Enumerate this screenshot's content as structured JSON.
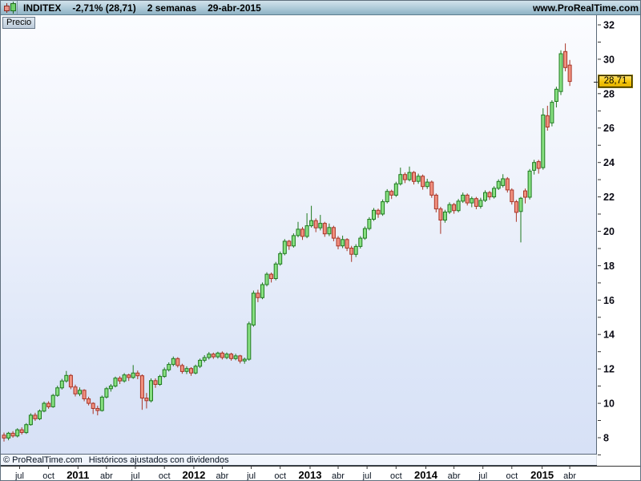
{
  "title_bar": {
    "symbol": "INDITEX",
    "change": "-2,71% (28,71)",
    "timeframe": "2 semanas",
    "date": "29-abr-2015",
    "website": "www.ProRealTime.com",
    "symbol_icon": "candlestick-pair-icon"
  },
  "price_tab": {
    "label": "Precio"
  },
  "footer": {
    "copyright": "© ProRealTime.com",
    "note": "Históricos ajustados con dividendos"
  },
  "last_price_label": "28,71",
  "colors": {
    "up_border": "#1f7a1f",
    "up_fill": "#87e081",
    "down_border": "#a93426",
    "down_fill": "#f19180",
    "badge_bg": "#f2c308",
    "titlebar_bg": "#aac8d6",
    "plot_bg_top": "#fbfcff",
    "plot_bg_bottom": "#d6e0f6",
    "axis_text": "#0a0a14"
  },
  "chart_data": {
    "type": "candlestick",
    "title": "INDITEX",
    "period_per_candle": "2 semanas",
    "last_date": "29-abr-2015",
    "last_price": 28.71,
    "y_axis": {
      "min": 6.4,
      "max": 32.6,
      "minor_step": 1,
      "label_step": 2,
      "labels": [
        "32",
        "30",
        "28",
        "26",
        "24",
        "22",
        "20",
        "18",
        "16",
        "14",
        "12",
        "10",
        "8"
      ]
    },
    "x_axis": {
      "ticks": [
        {
          "i": 3.5,
          "label": "jul",
          "bold": false
        },
        {
          "i": 10,
          "label": "oct",
          "bold": false
        },
        {
          "i": 16.6,
          "label": "2011",
          "bold": true
        },
        {
          "i": 23,
          "label": "abr",
          "bold": false
        },
        {
          "i": 29.5,
          "label": "jul",
          "bold": false
        },
        {
          "i": 36,
          "label": "oct",
          "bold": false
        },
        {
          "i": 42.6,
          "label": "2012",
          "bold": true
        },
        {
          "i": 49,
          "label": "abr",
          "bold": false
        },
        {
          "i": 55.5,
          "label": "jul",
          "bold": false
        },
        {
          "i": 62,
          "label": "oct",
          "bold": false
        },
        {
          "i": 68.7,
          "label": "2013",
          "bold": true
        },
        {
          "i": 75,
          "label": "abr",
          "bold": false
        },
        {
          "i": 81.5,
          "label": "jul",
          "bold": false
        },
        {
          "i": 88,
          "label": "oct",
          "bold": false
        },
        {
          "i": 94.7,
          "label": "2014",
          "bold": true
        },
        {
          "i": 101,
          "label": "abr",
          "bold": false
        },
        {
          "i": 107.5,
          "label": "jul",
          "bold": false
        },
        {
          "i": 114,
          "label": "oct",
          "bold": false
        },
        {
          "i": 120.8,
          "label": "2015",
          "bold": true
        },
        {
          "i": 127,
          "label": "abr",
          "bold": false
        }
      ]
    },
    "ohlc": [
      [
        8.15,
        8.3,
        7.78,
        7.98
      ],
      [
        7.98,
        8.34,
        7.85,
        8.26
      ],
      [
        8.26,
        8.38,
        8.0,
        8.1
      ],
      [
        8.1,
        8.55,
        8.02,
        8.46
      ],
      [
        8.46,
        8.6,
        8.18,
        8.3
      ],
      [
        8.3,
        8.85,
        8.22,
        8.76
      ],
      [
        8.76,
        9.42,
        8.7,
        9.31
      ],
      [
        9.31,
        9.45,
        8.98,
        9.1
      ],
      [
        9.1,
        9.64,
        9.02,
        9.55
      ],
      [
        9.55,
        10.1,
        9.48,
        10.0
      ],
      [
        10.0,
        10.12,
        9.68,
        9.8
      ],
      [
        9.8,
        10.55,
        9.74,
        10.46
      ],
      [
        10.46,
        11.02,
        10.38,
        10.9
      ],
      [
        10.9,
        11.42,
        10.8,
        11.3
      ],
      [
        11.3,
        11.88,
        11.2,
        11.62
      ],
      [
        11.62,
        11.7,
        10.82,
        10.95
      ],
      [
        10.95,
        11.08,
        10.4,
        10.55
      ],
      [
        10.55,
        10.92,
        10.42,
        10.76
      ],
      [
        10.76,
        10.82,
        10.12,
        10.26
      ],
      [
        10.26,
        10.38,
        9.88,
        10.0
      ],
      [
        10.0,
        10.06,
        9.38,
        9.7
      ],
      [
        9.7,
        9.86,
        9.3,
        9.58
      ],
      [
        9.58,
        10.45,
        9.52,
        10.36
      ],
      [
        10.36,
        10.95,
        10.28,
        10.85
      ],
      [
        10.85,
        11.12,
        10.68,
        11.0
      ],
      [
        11.0,
        11.55,
        10.92,
        11.46
      ],
      [
        11.46,
        11.58,
        11.12,
        11.3
      ],
      [
        11.3,
        11.75,
        11.2,
        11.65
      ],
      [
        11.65,
        11.72,
        11.3,
        11.5
      ],
      [
        11.5,
        12.22,
        11.42,
        11.76
      ],
      [
        11.76,
        11.9,
        11.4,
        11.6
      ],
      [
        11.6,
        11.68,
        9.62,
        10.3
      ],
      [
        10.3,
        10.6,
        9.7,
        10.15
      ],
      [
        10.15,
        11.45,
        10.05,
        11.32
      ],
      [
        11.32,
        11.45,
        10.9,
        11.1
      ],
      [
        11.1,
        11.66,
        11.02,
        11.56
      ],
      [
        11.56,
        12.08,
        11.48,
        11.95
      ],
      [
        11.95,
        12.38,
        11.85,
        12.26
      ],
      [
        12.26,
        12.72,
        12.15,
        12.6
      ],
      [
        12.6,
        12.68,
        12.08,
        12.2
      ],
      [
        12.2,
        12.3,
        11.72,
        11.85
      ],
      [
        11.85,
        12.15,
        11.7,
        12.02
      ],
      [
        12.02,
        12.1,
        11.6,
        11.76
      ],
      [
        11.76,
        12.25,
        11.68,
        12.15
      ],
      [
        12.15,
        12.6,
        12.05,
        12.5
      ],
      [
        12.5,
        12.8,
        12.38,
        12.66
      ],
      [
        12.66,
        12.98,
        12.55,
        12.86
      ],
      [
        12.86,
        12.95,
        12.58,
        12.7
      ],
      [
        12.7,
        13.0,
        12.6,
        12.92
      ],
      [
        12.92,
        13.02,
        12.55,
        12.66
      ],
      [
        12.66,
        12.96,
        12.56,
        12.86
      ],
      [
        12.86,
        12.94,
        12.48,
        12.6
      ],
      [
        12.6,
        12.88,
        12.5,
        12.76
      ],
      [
        12.76,
        12.82,
        12.32,
        12.46
      ],
      [
        12.46,
        12.66,
        12.3,
        12.56
      ],
      [
        12.56,
        14.75,
        12.48,
        14.62
      ],
      [
        14.55,
        16.55,
        14.45,
        16.4
      ],
      [
        16.4,
        16.6,
        15.88,
        16.14
      ],
      [
        16.14,
        17.02,
        16.05,
        16.9
      ],
      [
        16.9,
        17.62,
        16.8,
        17.5
      ],
      [
        17.5,
        17.6,
        17.02,
        17.25
      ],
      [
        17.25,
        18.22,
        17.15,
        18.1
      ],
      [
        18.1,
        18.82,
        18.0,
        18.7
      ],
      [
        18.7,
        19.55,
        18.6,
        19.42
      ],
      [
        19.42,
        19.5,
        18.92,
        19.15
      ],
      [
        19.15,
        19.88,
        19.05,
        19.75
      ],
      [
        19.75,
        20.55,
        19.65,
        20.12
      ],
      [
        20.12,
        20.25,
        19.5,
        19.7
      ],
      [
        19.7,
        21.05,
        19.6,
        20.32
      ],
      [
        20.32,
        21.48,
        20.22,
        20.62
      ],
      [
        20.62,
        20.75,
        19.95,
        20.2
      ],
      [
        20.2,
        20.95,
        20.05,
        20.46
      ],
      [
        20.46,
        20.55,
        19.68,
        19.85
      ],
      [
        19.85,
        20.45,
        19.72,
        20.22
      ],
      [
        20.22,
        20.32,
        19.42,
        19.6
      ],
      [
        19.6,
        19.72,
        18.95,
        19.15
      ],
      [
        19.15,
        19.75,
        19.02,
        19.52
      ],
      [
        19.52,
        19.6,
        18.85,
        19.02
      ],
      [
        19.02,
        19.15,
        18.22,
        18.66
      ],
      [
        18.66,
        19.25,
        18.5,
        19.12
      ],
      [
        19.12,
        19.72,
        19.0,
        19.6
      ],
      [
        19.6,
        20.28,
        19.5,
        20.16
      ],
      [
        20.16,
        20.82,
        20.05,
        20.7
      ],
      [
        20.7,
        21.35,
        20.6,
        21.22
      ],
      [
        21.22,
        21.32,
        20.78,
        21.0
      ],
      [
        21.0,
        21.85,
        20.9,
        21.72
      ],
      [
        21.72,
        22.45,
        21.62,
        22.32
      ],
      [
        22.32,
        22.42,
        21.88,
        22.1
      ],
      [
        22.1,
        22.88,
        22.0,
        22.76
      ],
      [
        22.76,
        23.7,
        22.66,
        23.3
      ],
      [
        23.3,
        23.42,
        22.8,
        23.0
      ],
      [
        23.0,
        23.76,
        22.9,
        23.42
      ],
      [
        23.42,
        23.5,
        22.72,
        22.9
      ],
      [
        22.9,
        23.35,
        22.76,
        23.2
      ],
      [
        23.2,
        23.3,
        22.42,
        22.6
      ],
      [
        22.6,
        23.05,
        22.46,
        22.86
      ],
      [
        22.86,
        22.95,
        21.95,
        22.1
      ],
      [
        22.1,
        22.2,
        21.1,
        21.3
      ],
      [
        21.3,
        21.42,
        19.85,
        20.65
      ],
      [
        20.65,
        21.25,
        20.5,
        21.12
      ],
      [
        21.12,
        21.68,
        21.0,
        21.55
      ],
      [
        21.55,
        21.65,
        21.02,
        21.2
      ],
      [
        21.2,
        21.88,
        21.1,
        21.75
      ],
      [
        21.75,
        22.25,
        21.65,
        22.1
      ],
      [
        22.1,
        22.2,
        21.5,
        21.65
      ],
      [
        21.65,
        22.02,
        21.4,
        21.9
      ],
      [
        21.9,
        22.0,
        21.28,
        21.45
      ],
      [
        21.45,
        21.95,
        21.32,
        21.8
      ],
      [
        21.8,
        22.38,
        21.7,
        22.25
      ],
      [
        22.25,
        22.35,
        21.82,
        22.0
      ],
      [
        22.0,
        22.62,
        21.9,
        22.5
      ],
      [
        22.5,
        23.02,
        22.4,
        22.9
      ],
      [
        22.66,
        23.32,
        22.55,
        23.05
      ],
      [
        23.05,
        23.15,
        22.25,
        22.4
      ],
      [
        22.4,
        22.5,
        21.55,
        21.72
      ],
      [
        21.72,
        21.82,
        20.55,
        21.1
      ],
      [
        21.15,
        22.0,
        19.35,
        21.92
      ],
      [
        22.35,
        22.48,
        21.62,
        21.98
      ],
      [
        21.98,
        23.62,
        21.85,
        23.5
      ],
      [
        23.55,
        24.15,
        23.3,
        24.0
      ],
      [
        24.05,
        24.15,
        23.35,
        23.66
      ],
      [
        23.7,
        27.15,
        23.58,
        26.76
      ],
      [
        26.72,
        27.3,
        25.85,
        26.06
      ],
      [
        26.3,
        27.62,
        26.1,
        27.5
      ],
      [
        27.55,
        28.4,
        27.2,
        28.26
      ],
      [
        28.12,
        30.52,
        27.92,
        30.32
      ],
      [
        30.45,
        30.92,
        29.3,
        29.52
      ],
      [
        29.66,
        29.96,
        28.45,
        28.71
      ]
    ]
  }
}
